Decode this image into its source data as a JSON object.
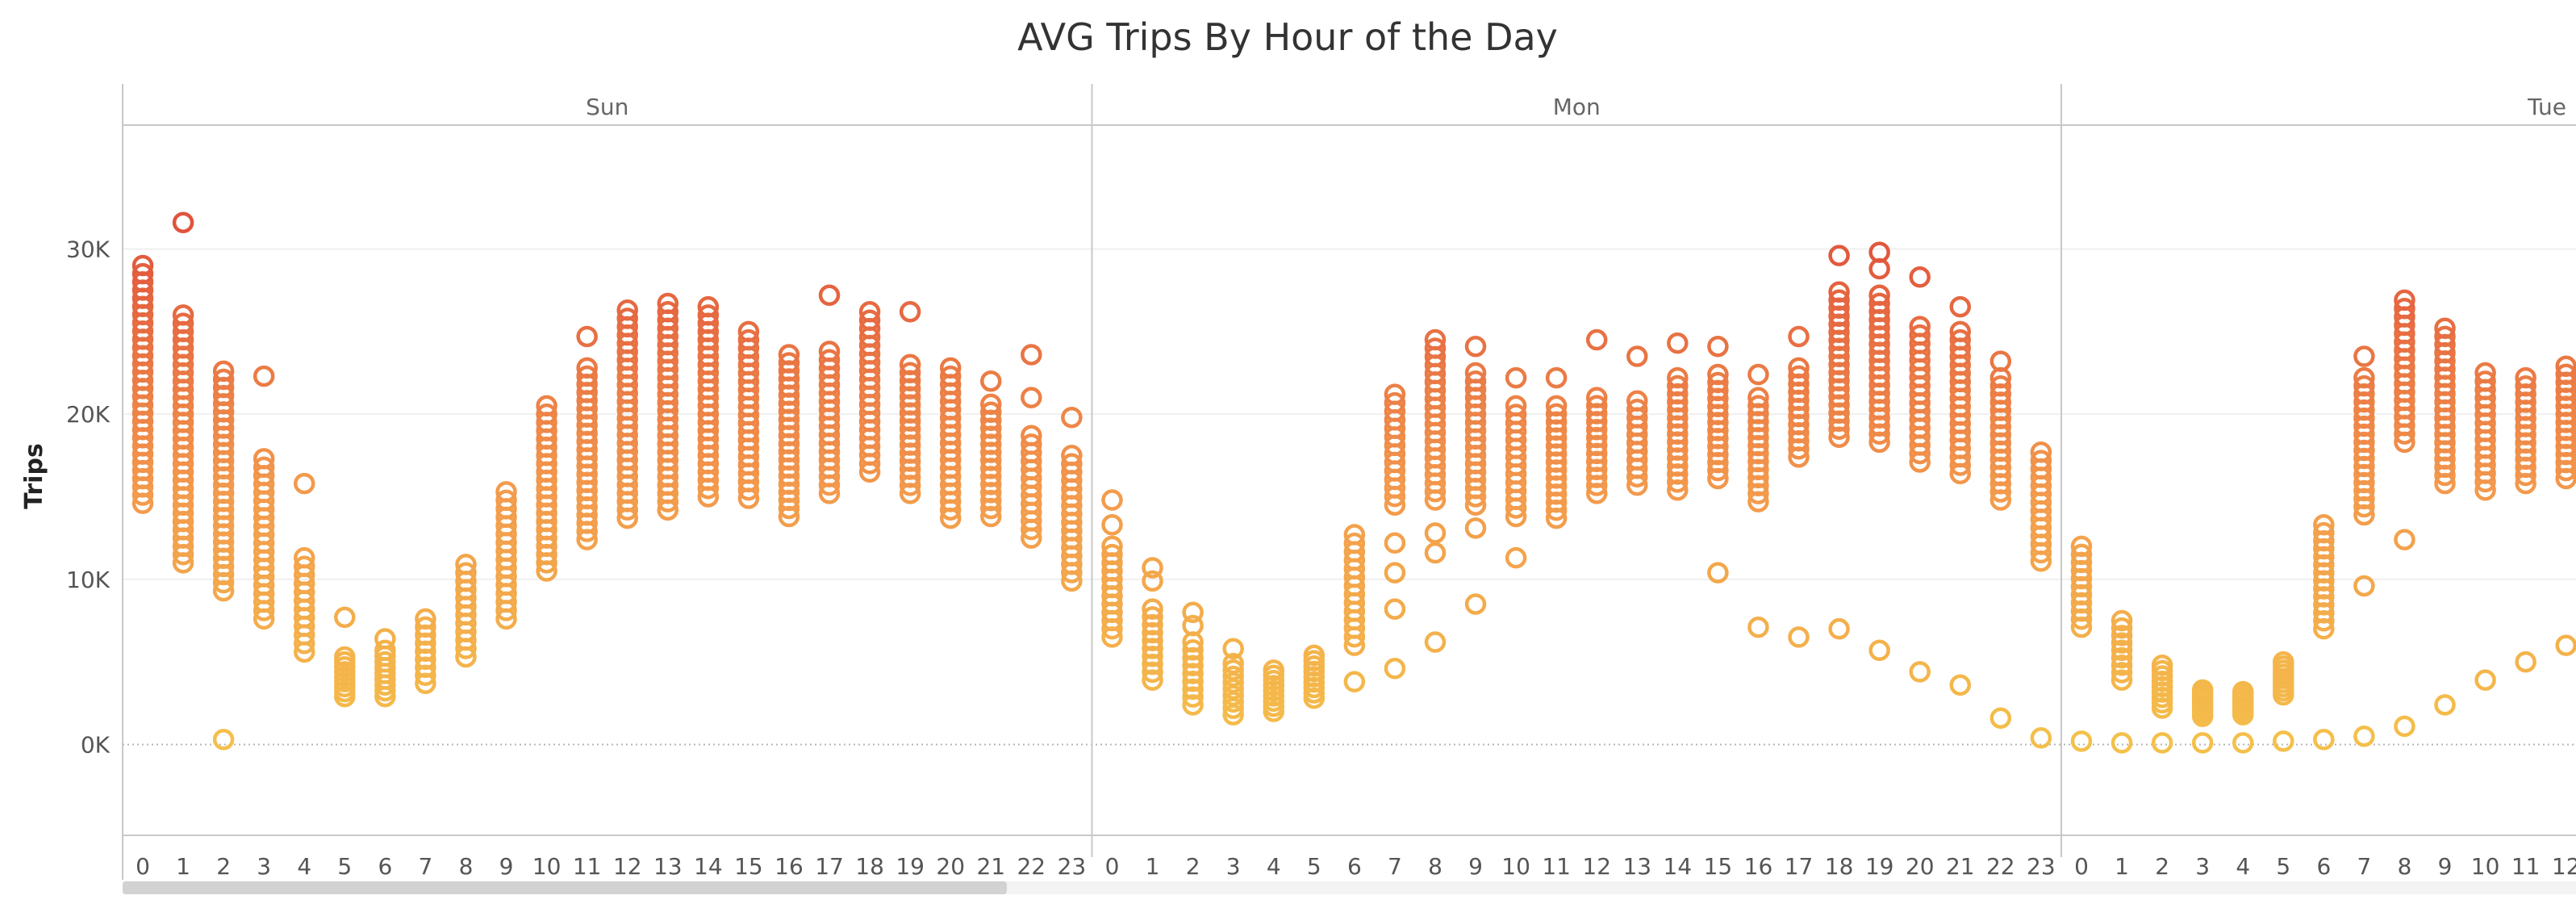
{
  "chart_data": {
    "type": "scatter",
    "title": "AVG Trips By Hour of the Day",
    "xlabel": "",
    "ylabel": "Trips",
    "y_range": [
      -5500,
      37500
    ],
    "y_ticks": [
      {
        "value": 0,
        "label": "0K"
      },
      {
        "value": 10000,
        "label": "10K"
      },
      {
        "value": 20000,
        "label": "20K"
      },
      {
        "value": 30000,
        "label": "30K"
      }
    ],
    "hour_labels": [
      "0",
      "1",
      "2",
      "3",
      "4",
      "5",
      "6",
      "7",
      "8",
      "9",
      "10",
      "11",
      "12",
      "13",
      "14",
      "15",
      "16",
      "17",
      "18",
      "19",
      "20",
      "21",
      "22",
      "23"
    ],
    "marker": "hollow-circle",
    "color_scale": {
      "low": "#f4c04a",
      "mid": "#f39a4c",
      "high": "#e0533c",
      "min": 0,
      "max": 31000
    },
    "grid": "horizontal",
    "panels": [
      {
        "day": "Sun",
        "visible_hours": 24,
        "hours": [
          {
            "hour": 0,
            "min": 14600,
            "max": 29000,
            "outliers": []
          },
          {
            "hour": 1,
            "min": 11000,
            "max": 26000,
            "outliers": [
              31600
            ]
          },
          {
            "hour": 2,
            "min": 9300,
            "max": 22600,
            "outliers": [
              300
            ]
          },
          {
            "hour": 3,
            "min": 7600,
            "max": 17300,
            "outliers": [
              22300
            ]
          },
          {
            "hour": 4,
            "min": 5600,
            "max": 11300,
            "outliers": [
              15800
            ]
          },
          {
            "hour": 5,
            "min": 2900,
            "max": 5300,
            "outliers": [
              7700
            ]
          },
          {
            "hour": 6,
            "min": 2900,
            "max": 5700,
            "outliers": [
              6400
            ]
          },
          {
            "hour": 7,
            "min": 3700,
            "max": 7600,
            "outliers": []
          },
          {
            "hour": 8,
            "min": 5300,
            "max": 10900,
            "outliers": []
          },
          {
            "hour": 9,
            "min": 7600,
            "max": 15300,
            "outliers": []
          },
          {
            "hour": 10,
            "min": 10500,
            "max": 20500,
            "outliers": []
          },
          {
            "hour": 11,
            "min": 12400,
            "max": 22800,
            "outliers": [
              24700
            ]
          },
          {
            "hour": 12,
            "min": 13700,
            "max": 26300,
            "outliers": []
          },
          {
            "hour": 13,
            "min": 14200,
            "max": 26700,
            "outliers": []
          },
          {
            "hour": 14,
            "min": 15000,
            "max": 26500,
            "outliers": []
          },
          {
            "hour": 15,
            "min": 14900,
            "max": 25000,
            "outliers": []
          },
          {
            "hour": 16,
            "min": 13800,
            "max": 23600,
            "outliers": []
          },
          {
            "hour": 17,
            "min": 15200,
            "max": 23800,
            "outliers": [
              27200
            ]
          },
          {
            "hour": 18,
            "min": 16500,
            "max": 26200,
            "outliers": []
          },
          {
            "hour": 19,
            "min": 15200,
            "max": 23000,
            "outliers": [
              26200
            ]
          },
          {
            "hour": 20,
            "min": 13700,
            "max": 22800,
            "outliers": []
          },
          {
            "hour": 21,
            "min": 13800,
            "max": 20600,
            "outliers": [
              22000
            ]
          },
          {
            "hour": 22,
            "min": 12500,
            "max": 18700,
            "outliers": [
              21000,
              23600
            ]
          },
          {
            "hour": 23,
            "min": 9900,
            "max": 17500,
            "outliers": [
              19800
            ]
          }
        ]
      },
      {
        "day": "Mon",
        "visible_hours": 24,
        "hours": [
          {
            "hour": 0,
            "min": 6500,
            "max": 12000,
            "outliers": [
              13300,
              14800
            ]
          },
          {
            "hour": 1,
            "min": 3900,
            "max": 8200,
            "outliers": [
              9900,
              10700
            ]
          },
          {
            "hour": 2,
            "min": 2400,
            "max": 6200,
            "outliers": [
              7200,
              8000
            ]
          },
          {
            "hour": 3,
            "min": 1800,
            "max": 4900,
            "outliers": [
              5800
            ]
          },
          {
            "hour": 4,
            "min": 2000,
            "max": 4500,
            "outliers": []
          },
          {
            "hour": 5,
            "min": 2800,
            "max": 5400,
            "outliers": []
          },
          {
            "hour": 6,
            "min": 6000,
            "max": 12700,
            "outliers": [
              3800
            ]
          },
          {
            "hour": 7,
            "min": 14500,
            "max": 21200,
            "outliers": [
              4600,
              8200,
              10400,
              12200
            ]
          },
          {
            "hour": 8,
            "min": 14800,
            "max": 24500,
            "outliers": [
              6200,
              11600,
              12800
            ]
          },
          {
            "hour": 9,
            "min": 14500,
            "max": 22500,
            "outliers": [
              8500,
              13100,
              24100
            ]
          },
          {
            "hour": 10,
            "min": 13800,
            "max": 20500,
            "outliers": [
              11300,
              22200
            ]
          },
          {
            "hour": 11,
            "min": 13700,
            "max": 20500,
            "outliers": [
              22200
            ]
          },
          {
            "hour": 12,
            "min": 15200,
            "max": 21000,
            "outliers": [
              24500
            ]
          },
          {
            "hour": 13,
            "min": 15700,
            "max": 20800,
            "outliers": [
              23500
            ]
          },
          {
            "hour": 14,
            "min": 15400,
            "max": 22200,
            "outliers": [
              24300
            ]
          },
          {
            "hour": 15,
            "min": 16100,
            "max": 22400,
            "outliers": [
              10400,
              24100
            ]
          },
          {
            "hour": 16,
            "min": 14700,
            "max": 21000,
            "outliers": [
              7100,
              22400
            ]
          },
          {
            "hour": 17,
            "min": 17400,
            "max": 22800,
            "outliers": [
              6500,
              24700
            ]
          },
          {
            "hour": 18,
            "min": 18600,
            "max": 27400,
            "outliers": [
              7000,
              29600
            ]
          },
          {
            "hour": 19,
            "min": 18300,
            "max": 27200,
            "outliers": [
              5700,
              28800,
              29800
            ]
          },
          {
            "hour": 20,
            "min": 17100,
            "max": 25300,
            "outliers": [
              4400,
              28300
            ]
          },
          {
            "hour": 21,
            "min": 16400,
            "max": 25000,
            "outliers": [
              3600,
              26500
            ]
          },
          {
            "hour": 22,
            "min": 14800,
            "max": 22200,
            "outliers": [
              1600,
              23200
            ]
          },
          {
            "hour": 23,
            "min": 11100,
            "max": 17700,
            "outliers": [
              400
            ]
          }
        ]
      },
      {
        "day": "Tue",
        "visible_hours": 13,
        "hours": [
          {
            "hour": 0,
            "min": 7100,
            "max": 12000,
            "outliers": [
              200
            ]
          },
          {
            "hour": 1,
            "min": 3900,
            "max": 7500,
            "outliers": [
              100
            ]
          },
          {
            "hour": 2,
            "min": 2200,
            "max": 4800,
            "outliers": [
              100
            ]
          },
          {
            "hour": 3,
            "min": 1700,
            "max": 3300,
            "outliers": [
              100
            ]
          },
          {
            "hour": 4,
            "min": 1800,
            "max": 3200,
            "outliers": [
              100
            ]
          },
          {
            "hour": 5,
            "min": 3000,
            "max": 5000,
            "outliers": [
              200
            ]
          },
          {
            "hour": 6,
            "min": 7000,
            "max": 13300,
            "outliers": [
              300
            ]
          },
          {
            "hour": 7,
            "min": 13900,
            "max": 22200,
            "outliers": [
              500,
              9600,
              23500
            ]
          },
          {
            "hour": 8,
            "min": 18300,
            "max": 26900,
            "outliers": [
              1100,
              12400
            ]
          },
          {
            "hour": 9,
            "min": 15800,
            "max": 25200,
            "outliers": [
              2400
            ]
          },
          {
            "hour": 10,
            "min": 15400,
            "max": 22500,
            "outliers": [
              3900
            ]
          },
          {
            "hour": 11,
            "min": 15800,
            "max": 22200,
            "outliers": [
              5000
            ]
          },
          {
            "hour": 12,
            "min": 16100,
            "max": 22900,
            "outliers": [
              6000
            ]
          }
        ]
      }
    ]
  }
}
